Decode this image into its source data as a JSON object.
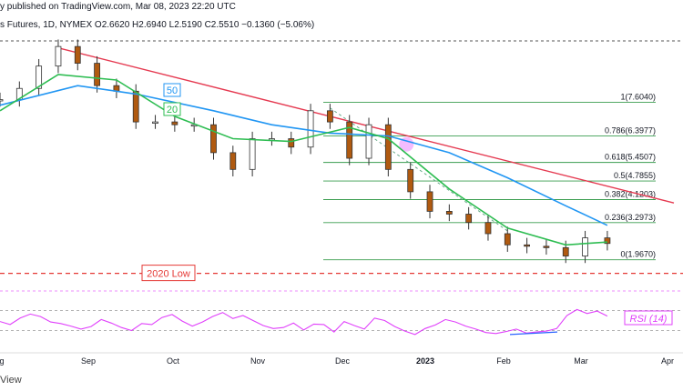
{
  "header": {
    "published": "y published on TradingView.com, Mar 08, 2023 22:20 UTC",
    "symbol_line": "s Futures, 1D, NYMEX  O2.6620  H2.6940  L2.5190  C2.5510  −0.1360 (−5.06%)"
  },
  "footer": {
    "brand": "View"
  },
  "chart_data": {
    "type": "candlestick",
    "title": "",
    "x_ticks": [
      "g",
      "Sep",
      "Oct",
      "Nov",
      "Dec",
      "2023",
      "Feb",
      "Mar",
      "Apr"
    ],
    "price_range": [
      1.5,
      9.8
    ],
    "series": [
      {
        "name": "price",
        "color": "#b05a10",
        "values": [
          {
            "date": "Aug 01",
            "close": 7.7
          },
          {
            "date": "Aug 08",
            "close": 8.1
          },
          {
            "date": "Aug 15",
            "close": 8.9
          },
          {
            "date": "Aug 22",
            "close": 9.6
          },
          {
            "date": "Aug 29",
            "close": 9.0
          },
          {
            "date": "Sep 05",
            "close": 8.2
          },
          {
            "date": "Sep 12",
            "close": 8.0
          },
          {
            "date": "Sep 19",
            "close": 6.9
          },
          {
            "date": "Sep 26",
            "close": 6.9
          },
          {
            "date": "Oct 03",
            "close": 6.8
          },
          {
            "date": "Oct 10",
            "close": 6.8
          },
          {
            "date": "Oct 17",
            "close": 5.8
          },
          {
            "date": "Oct 24",
            "close": 5.2
          },
          {
            "date": "Oct 31",
            "close": 6.3
          },
          {
            "date": "Nov 07",
            "close": 6.3
          },
          {
            "date": "Nov 14",
            "close": 6.0
          },
          {
            "date": "Nov 21",
            "close": 7.3
          },
          {
            "date": "Nov 28",
            "close": 6.9
          },
          {
            "date": "Dec 05",
            "close": 5.6
          },
          {
            "date": "Dec 12",
            "close": 6.8
          },
          {
            "date": "Dec 19",
            "close": 5.2
          },
          {
            "date": "Dec 27",
            "close": 4.4
          },
          {
            "date": "Jan 03",
            "close": 3.7
          },
          {
            "date": "Jan 10",
            "close": 3.6
          },
          {
            "date": "Jan 17",
            "close": 3.3
          },
          {
            "date": "Jan 24",
            "close": 2.9
          },
          {
            "date": "Jan 31",
            "close": 2.5
          },
          {
            "date": "Feb 07",
            "close": 2.45
          },
          {
            "date": "Feb 14",
            "close": 2.4
          },
          {
            "date": "Feb 21",
            "close": 2.1
          },
          {
            "date": "Feb 28",
            "close": 2.75
          },
          {
            "date": "Mar 08",
            "close": 2.55
          }
        ]
      },
      {
        "name": "50",
        "label": "50",
        "color": "#2196f3",
        "values": [
          {
            "date": "Aug 01",
            "value": 7.5
          },
          {
            "date": "Aug 29",
            "value": 8.2
          },
          {
            "date": "Sep 19",
            "value": 7.9
          },
          {
            "date": "Oct 17",
            "value": 7.3
          },
          {
            "date": "Nov 07",
            "value": 6.8
          },
          {
            "date": "Nov 28",
            "value": 6.5
          },
          {
            "date": "Dec 19",
            "value": 6.4
          },
          {
            "date": "Jan 10",
            "value": 5.8
          },
          {
            "date": "Jan 31",
            "value": 4.9
          },
          {
            "date": "Feb 21",
            "value": 3.9
          },
          {
            "date": "Mar 08",
            "value": 3.2
          }
        ]
      },
      {
        "name": "20",
        "label": "20",
        "color": "#2ebd52",
        "values": [
          {
            "date": "Aug 01",
            "value": 7.3
          },
          {
            "date": "Aug 22",
            "value": 8.6
          },
          {
            "date": "Sep 12",
            "value": 8.4
          },
          {
            "date": "Oct 03",
            "value": 7.1
          },
          {
            "date": "Oct 24",
            "value": 6.3
          },
          {
            "date": "Nov 14",
            "value": 6.2
          },
          {
            "date": "Dec 05",
            "value": 6.7
          },
          {
            "date": "Dec 19",
            "value": 6.3
          },
          {
            "date": "Jan 10",
            "value": 4.5
          },
          {
            "date": "Jan 31",
            "value": 3.1
          },
          {
            "date": "Feb 21",
            "value": 2.5
          },
          {
            "date": "Mar 08",
            "value": 2.6
          }
        ]
      }
    ],
    "fibonacci": [
      {
        "label": "1(7.6040)",
        "value": 7.604
      },
      {
        "label": "0.786(6.3977)",
        "value": 6.3977
      },
      {
        "label": "0.618(5.4507)",
        "value": 5.4507
      },
      {
        "label": "0.5(4.7855)",
        "value": 4.7855
      },
      {
        "label": "0.382(4.1203)",
        "value": 4.1203
      },
      {
        "label": "0.236(3.2973)",
        "value": 3.2973
      },
      {
        "label": "0(1.9670)",
        "value": 1.967
      }
    ],
    "annotations": [
      {
        "text": "2020 Low",
        "value": 1.48,
        "color": "#e53935"
      }
    ],
    "rsi": {
      "label": "RSI (14)",
      "color": "#e040fb",
      "range": [
        0,
        100
      ],
      "levels": [
        70,
        30
      ],
      "values": [
        48,
        42,
        55,
        63,
        58,
        47,
        44,
        39,
        33,
        38,
        52,
        45,
        36,
        30,
        44,
        42,
        56,
        62,
        49,
        39,
        47,
        58,
        66,
        54,
        60,
        50,
        40,
        34,
        36,
        45,
        31,
        43,
        42,
        27,
        48,
        40,
        33,
        55,
        50,
        38,
        29,
        22,
        34,
        41,
        52,
        47,
        39,
        33,
        26,
        24,
        28,
        33,
        25,
        27,
        29,
        34,
        60,
        72,
        64,
        69,
        59
      ]
    }
  }
}
